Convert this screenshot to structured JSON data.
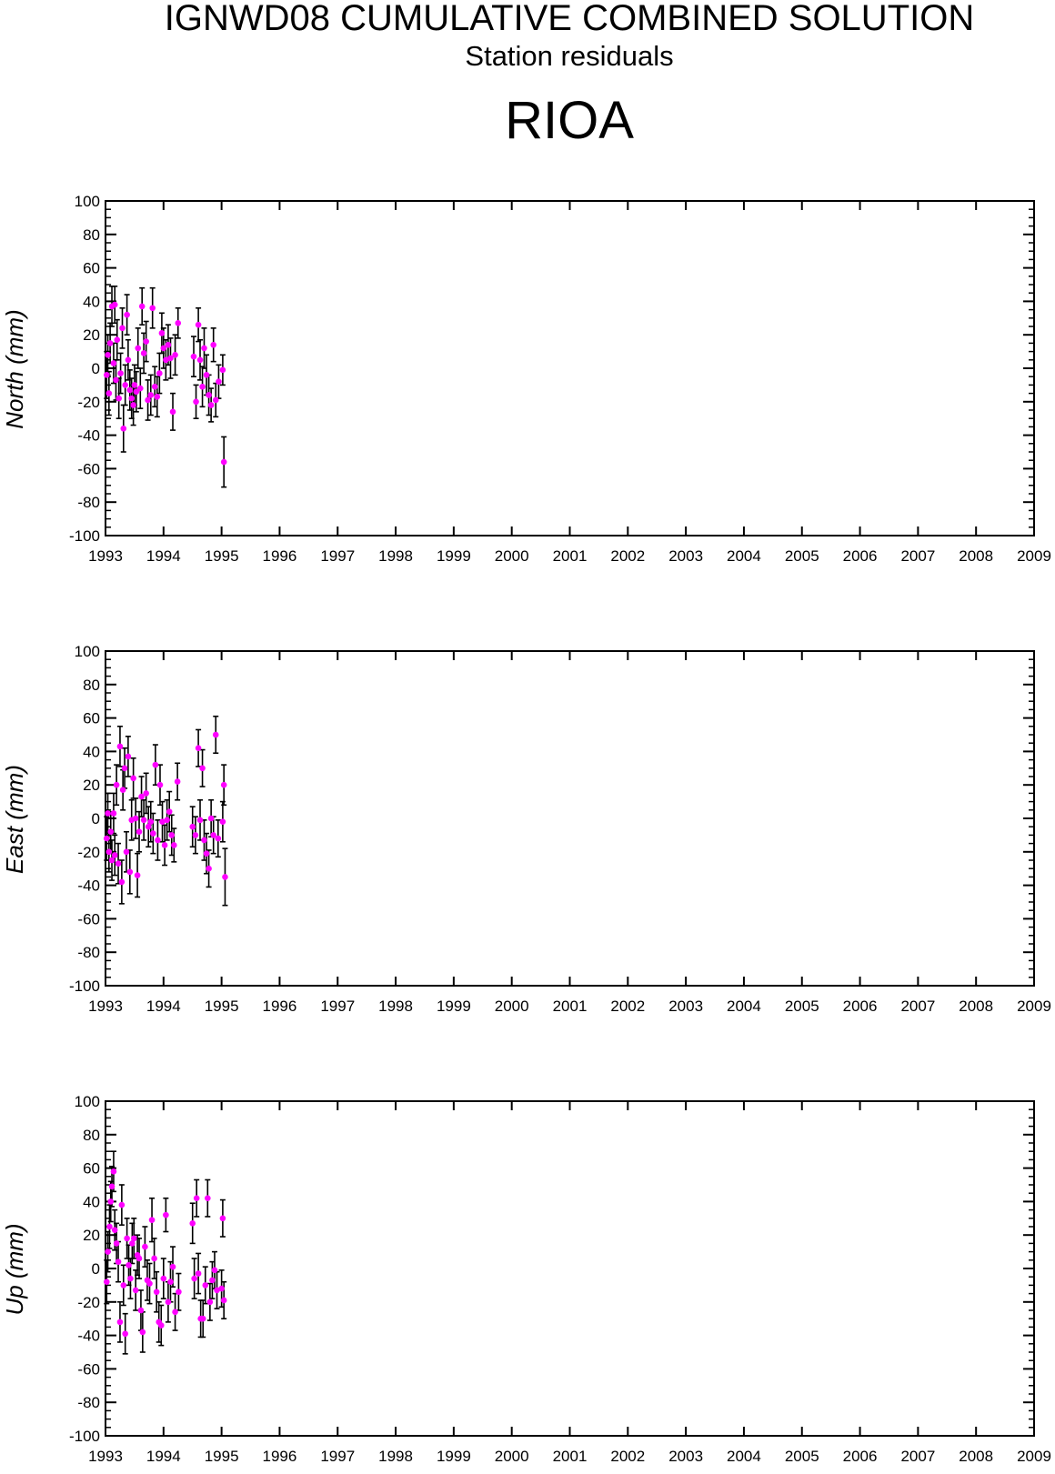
{
  "title": "IGNWD08 CUMULATIVE COMBINED SOLUTION",
  "subtitle": "Station residuals",
  "station": "RIOA",
  "colors": {
    "marker": "#ff00ff",
    "errorbar": "#000000",
    "axes": "#000000"
  },
  "chart_data": [
    {
      "type": "scatter",
      "ylabel": "North (mm)",
      "xlim": [
        1993,
        2009
      ],
      "ylim": [
        -100,
        100
      ],
      "xticks": [
        1993,
        1994,
        1995,
        1996,
        1997,
        1998,
        1999,
        2000,
        2001,
        2002,
        2003,
        2004,
        2005,
        2006,
        2007,
        2008,
        2009
      ],
      "xtick_labels": [
        "1993",
        "1994",
        "1995",
        "1996",
        "1997",
        "1998",
        "1999",
        "2000",
        "2001",
        "2002",
        "2003",
        "2004",
        "2005",
        "2006",
        "2007",
        "2008",
        "2009"
      ],
      "yticks": [
        -100,
        -80,
        -60,
        -40,
        -20,
        0,
        20,
        40,
        60,
        80,
        100
      ],
      "ytick_labels": [
        "-100",
        "-80",
        "-60",
        "-40",
        "-20",
        "0",
        "20",
        "40",
        "60",
        "80",
        "100"
      ],
      "grid": false,
      "points": [
        {
          "x": 1993.02,
          "y": -4,
          "err": 14
        },
        {
          "x": 1993.04,
          "y": 8,
          "err": 12
        },
        {
          "x": 1993.06,
          "y": -15,
          "err": 13
        },
        {
          "x": 1993.08,
          "y": 15,
          "err": 12
        },
        {
          "x": 1993.11,
          "y": 37,
          "err": 12
        },
        {
          "x": 1993.14,
          "y": 3,
          "err": 12
        },
        {
          "x": 1993.16,
          "y": 38,
          "err": 11
        },
        {
          "x": 1993.18,
          "y": -7,
          "err": 12
        },
        {
          "x": 1993.2,
          "y": 17,
          "err": 12
        },
        {
          "x": 1993.23,
          "y": -18,
          "err": 12
        },
        {
          "x": 1993.26,
          "y": -3,
          "err": 12
        },
        {
          "x": 1993.29,
          "y": 24,
          "err": 12
        },
        {
          "x": 1993.31,
          "y": -36,
          "err": 14
        },
        {
          "x": 1993.34,
          "y": -10,
          "err": 12
        },
        {
          "x": 1993.37,
          "y": 32,
          "err": 12
        },
        {
          "x": 1993.39,
          "y": 5,
          "err": 12
        },
        {
          "x": 1993.42,
          "y": -13,
          "err": 12
        },
        {
          "x": 1993.45,
          "y": -18,
          "err": 12
        },
        {
          "x": 1993.48,
          "y": -22,
          "err": 12
        },
        {
          "x": 1993.5,
          "y": -10,
          "err": 12
        },
        {
          "x": 1993.53,
          "y": -14,
          "err": 12
        },
        {
          "x": 1993.56,
          "y": 12,
          "err": 12
        },
        {
          "x": 1993.6,
          "y": -12,
          "err": 12
        },
        {
          "x": 1993.63,
          "y": 37,
          "err": 11
        },
        {
          "x": 1993.66,
          "y": 9,
          "err": 12
        },
        {
          "x": 1993.7,
          "y": 16,
          "err": 12
        },
        {
          "x": 1993.73,
          "y": -19,
          "err": 12
        },
        {
          "x": 1993.78,
          "y": -16,
          "err": 12
        },
        {
          "x": 1993.81,
          "y": 36,
          "err": 12
        },
        {
          "x": 1993.85,
          "y": -11,
          "err": 12
        },
        {
          "x": 1993.89,
          "y": -17,
          "err": 12
        },
        {
          "x": 1993.93,
          "y": -3,
          "err": 12
        },
        {
          "x": 1993.97,
          "y": 21,
          "err": 12
        },
        {
          "x": 1994.0,
          "y": 12,
          "err": 12
        },
        {
          "x": 1994.04,
          "y": 5,
          "err": 12
        },
        {
          "x": 1994.08,
          "y": 14,
          "err": 12
        },
        {
          "x": 1994.12,
          "y": 6,
          "err": 12
        },
        {
          "x": 1994.16,
          "y": -26,
          "err": 11
        },
        {
          "x": 1994.2,
          "y": 8,
          "err": 12
        },
        {
          "x": 1994.25,
          "y": 27,
          "err": 9
        },
        {
          "x": 1994.52,
          "y": 7,
          "err": 12
        },
        {
          "x": 1994.56,
          "y": -20,
          "err": 10
        },
        {
          "x": 1994.6,
          "y": 26,
          "err": 10
        },
        {
          "x": 1994.63,
          "y": 5,
          "err": 12
        },
        {
          "x": 1994.67,
          "y": -11,
          "err": 12
        },
        {
          "x": 1994.7,
          "y": 12,
          "err": 12
        },
        {
          "x": 1994.74,
          "y": -4,
          "err": 12
        },
        {
          "x": 1994.78,
          "y": -16,
          "err": 12
        },
        {
          "x": 1994.82,
          "y": -22,
          "err": 10
        },
        {
          "x": 1994.86,
          "y": 14,
          "err": 10
        },
        {
          "x": 1994.9,
          "y": -19,
          "err": 10
        },
        {
          "x": 1994.95,
          "y": -8,
          "err": 10
        },
        {
          "x": 1995.02,
          "y": -1,
          "err": 9
        },
        {
          "x": 1995.04,
          "y": -56,
          "err": 15
        }
      ]
    },
    {
      "type": "scatter",
      "ylabel": "East (mm)",
      "xlim": [
        1993,
        2009
      ],
      "ylim": [
        -100,
        100
      ],
      "xticks": [
        1993,
        1994,
        1995,
        1996,
        1997,
        1998,
        1999,
        2000,
        2001,
        2002,
        2003,
        2004,
        2005,
        2006,
        2007,
        2008,
        2009
      ],
      "xtick_labels": [
        "1993",
        "1994",
        "1995",
        "1996",
        "1997",
        "1998",
        "1999",
        "2000",
        "2001",
        "2002",
        "2003",
        "2004",
        "2005",
        "2006",
        "2007",
        "2008",
        "2009"
      ],
      "yticks": [
        -100,
        -80,
        -60,
        -40,
        -20,
        0,
        20,
        40,
        60,
        80,
        100
      ],
      "ytick_labels": [
        "-100",
        "-80",
        "-60",
        "-40",
        "-20",
        "0",
        "20",
        "40",
        "60",
        "80",
        "100"
      ],
      "grid": false,
      "points": [
        {
          "x": 1993.02,
          "y": -12,
          "err": 13
        },
        {
          "x": 1993.04,
          "y": 3,
          "err": 12
        },
        {
          "x": 1993.06,
          "y": -20,
          "err": 12
        },
        {
          "x": 1993.09,
          "y": -8,
          "err": 12
        },
        {
          "x": 1993.11,
          "y": -25,
          "err": 12
        },
        {
          "x": 1993.14,
          "y": 3,
          "err": 12
        },
        {
          "x": 1993.16,
          "y": -22,
          "err": 12
        },
        {
          "x": 1993.19,
          "y": 20,
          "err": 12
        },
        {
          "x": 1993.22,
          "y": -27,
          "err": 12
        },
        {
          "x": 1993.25,
          "y": 43,
          "err": 12
        },
        {
          "x": 1993.28,
          "y": -38,
          "err": 13
        },
        {
          "x": 1993.3,
          "y": 17,
          "err": 12
        },
        {
          "x": 1993.33,
          "y": 30,
          "err": 12
        },
        {
          "x": 1993.36,
          "y": -20,
          "err": 12
        },
        {
          "x": 1993.39,
          "y": 37,
          "err": 12
        },
        {
          "x": 1993.42,
          "y": -32,
          "err": 13
        },
        {
          "x": 1993.45,
          "y": -1,
          "err": 12
        },
        {
          "x": 1993.48,
          "y": 24,
          "err": 12
        },
        {
          "x": 1993.52,
          "y": 0,
          "err": 12
        },
        {
          "x": 1993.55,
          "y": -34,
          "err": 13
        },
        {
          "x": 1993.58,
          "y": -8,
          "err": 12
        },
        {
          "x": 1993.62,
          "y": 13,
          "err": 12
        },
        {
          "x": 1993.66,
          "y": -1,
          "err": 12
        },
        {
          "x": 1993.7,
          "y": 15,
          "err": 12
        },
        {
          "x": 1993.74,
          "y": -5,
          "err": 12
        },
        {
          "x": 1993.78,
          "y": -2,
          "err": 12
        },
        {
          "x": 1993.82,
          "y": -9,
          "err": 12
        },
        {
          "x": 1993.86,
          "y": 32,
          "err": 12
        },
        {
          "x": 1993.9,
          "y": -13,
          "err": 12
        },
        {
          "x": 1993.94,
          "y": 20,
          "err": 12
        },
        {
          "x": 1993.98,
          "y": -2,
          "err": 12
        },
        {
          "x": 1994.02,
          "y": -16,
          "err": 12
        },
        {
          "x": 1994.06,
          "y": -1,
          "err": 12
        },
        {
          "x": 1994.1,
          "y": 4,
          "err": 12
        },
        {
          "x": 1994.14,
          "y": -10,
          "err": 12
        },
        {
          "x": 1994.18,
          "y": -16,
          "err": 10
        },
        {
          "x": 1994.24,
          "y": 22,
          "err": 11
        },
        {
          "x": 1994.5,
          "y": -5,
          "err": 12
        },
        {
          "x": 1994.55,
          "y": -10,
          "err": 11
        },
        {
          "x": 1994.6,
          "y": 42,
          "err": 11
        },
        {
          "x": 1994.63,
          "y": -1,
          "err": 12
        },
        {
          "x": 1994.67,
          "y": 30,
          "err": 11
        },
        {
          "x": 1994.7,
          "y": -13,
          "err": 12
        },
        {
          "x": 1994.74,
          "y": -21,
          "err": 12
        },
        {
          "x": 1994.78,
          "y": -30,
          "err": 11
        },
        {
          "x": 1994.82,
          "y": 0,
          "err": 11
        },
        {
          "x": 1994.86,
          "y": -10,
          "err": 11
        },
        {
          "x": 1994.9,
          "y": 50,
          "err": 11
        },
        {
          "x": 1994.94,
          "y": -12,
          "err": 11
        },
        {
          "x": 1995.02,
          "y": -2,
          "err": 12
        },
        {
          "x": 1995.04,
          "y": 20,
          "err": 12
        },
        {
          "x": 1995.06,
          "y": -35,
          "err": 17
        }
      ]
    },
    {
      "type": "scatter",
      "ylabel": "Up (mm)",
      "xlim": [
        1993,
        2009
      ],
      "ylim": [
        -100,
        100
      ],
      "xticks": [
        1993,
        1994,
        1995,
        1996,
        1997,
        1998,
        1999,
        2000,
        2001,
        2002,
        2003,
        2004,
        2005,
        2006,
        2007,
        2008,
        2009
      ],
      "xtick_labels": [
        "1993",
        "1994",
        "1995",
        "1996",
        "1997",
        "1998",
        "1999",
        "2000",
        "2001",
        "2002",
        "2003",
        "2004",
        "2005",
        "2006",
        "2007",
        "2008",
        "2009"
      ],
      "yticks": [
        -100,
        -80,
        -60,
        -40,
        -20,
        0,
        20,
        40,
        60,
        80,
        100
      ],
      "ytick_labels": [
        "-100",
        "-80",
        "-60",
        "-40",
        "-20",
        "0",
        "20",
        "40",
        "60",
        "80",
        "100"
      ],
      "grid": false,
      "points": [
        {
          "x": 1993.02,
          "y": -8,
          "err": 13
        },
        {
          "x": 1993.04,
          "y": 10,
          "err": 12
        },
        {
          "x": 1993.07,
          "y": 25,
          "err": 13
        },
        {
          "x": 1993.09,
          "y": 40,
          "err": 12
        },
        {
          "x": 1993.11,
          "y": 49,
          "err": 12
        },
        {
          "x": 1993.14,
          "y": 58,
          "err": 12
        },
        {
          "x": 1993.16,
          "y": 23,
          "err": 12
        },
        {
          "x": 1993.19,
          "y": 15,
          "err": 12
        },
        {
          "x": 1993.22,
          "y": 4,
          "err": 12
        },
        {
          "x": 1993.25,
          "y": -32,
          "err": 12
        },
        {
          "x": 1993.28,
          "y": 38,
          "err": 12
        },
        {
          "x": 1993.31,
          "y": -10,
          "err": 12
        },
        {
          "x": 1993.34,
          "y": -39,
          "err": 12
        },
        {
          "x": 1993.37,
          "y": 18,
          "err": 12
        },
        {
          "x": 1993.4,
          "y": 2,
          "err": 12
        },
        {
          "x": 1993.43,
          "y": -6,
          "err": 12
        },
        {
          "x": 1993.46,
          "y": 15,
          "err": 12
        },
        {
          "x": 1993.49,
          "y": 18,
          "err": 12
        },
        {
          "x": 1993.52,
          "y": -13,
          "err": 12
        },
        {
          "x": 1993.55,
          "y": 8,
          "err": 12
        },
        {
          "x": 1993.58,
          "y": 6,
          "err": 12
        },
        {
          "x": 1993.61,
          "y": -25,
          "err": 12
        },
        {
          "x": 1993.64,
          "y": -38,
          "err": 12
        },
        {
          "x": 1993.68,
          "y": 13,
          "err": 12
        },
        {
          "x": 1993.72,
          "y": -7,
          "err": 12
        },
        {
          "x": 1993.76,
          "y": -9,
          "err": 12
        },
        {
          "x": 1993.8,
          "y": 29,
          "err": 13
        },
        {
          "x": 1993.84,
          "y": 6,
          "err": 12
        },
        {
          "x": 1993.88,
          "y": -14,
          "err": 12
        },
        {
          "x": 1993.92,
          "y": -32,
          "err": 12
        },
        {
          "x": 1993.96,
          "y": -34,
          "err": 12
        },
        {
          "x": 1994.0,
          "y": -6,
          "err": 12
        },
        {
          "x": 1994.04,
          "y": 32,
          "err": 10
        },
        {
          "x": 1994.08,
          "y": -20,
          "err": 12
        },
        {
          "x": 1994.12,
          "y": -8,
          "err": 12
        },
        {
          "x": 1994.16,
          "y": 1,
          "err": 12
        },
        {
          "x": 1994.2,
          "y": -26,
          "err": 11
        },
        {
          "x": 1994.26,
          "y": -14,
          "err": 11
        },
        {
          "x": 1994.5,
          "y": 27,
          "err": 12
        },
        {
          "x": 1994.53,
          "y": -6,
          "err": 12
        },
        {
          "x": 1994.57,
          "y": 42,
          "err": 11
        },
        {
          "x": 1994.6,
          "y": -3,
          "err": 12
        },
        {
          "x": 1994.64,
          "y": -30,
          "err": 11
        },
        {
          "x": 1994.68,
          "y": -30,
          "err": 11
        },
        {
          "x": 1994.72,
          "y": -10,
          "err": 11
        },
        {
          "x": 1994.76,
          "y": 42,
          "err": 11
        },
        {
          "x": 1994.8,
          "y": -20,
          "err": 11
        },
        {
          "x": 1994.84,
          "y": -7,
          "err": 11
        },
        {
          "x": 1994.88,
          "y": -1,
          "err": 11
        },
        {
          "x": 1994.92,
          "y": -13,
          "err": 11
        },
        {
          "x": 1995.0,
          "y": -12,
          "err": 11
        },
        {
          "x": 1995.02,
          "y": 30,
          "err": 11
        },
        {
          "x": 1995.04,
          "y": -19,
          "err": 11
        }
      ]
    }
  ]
}
